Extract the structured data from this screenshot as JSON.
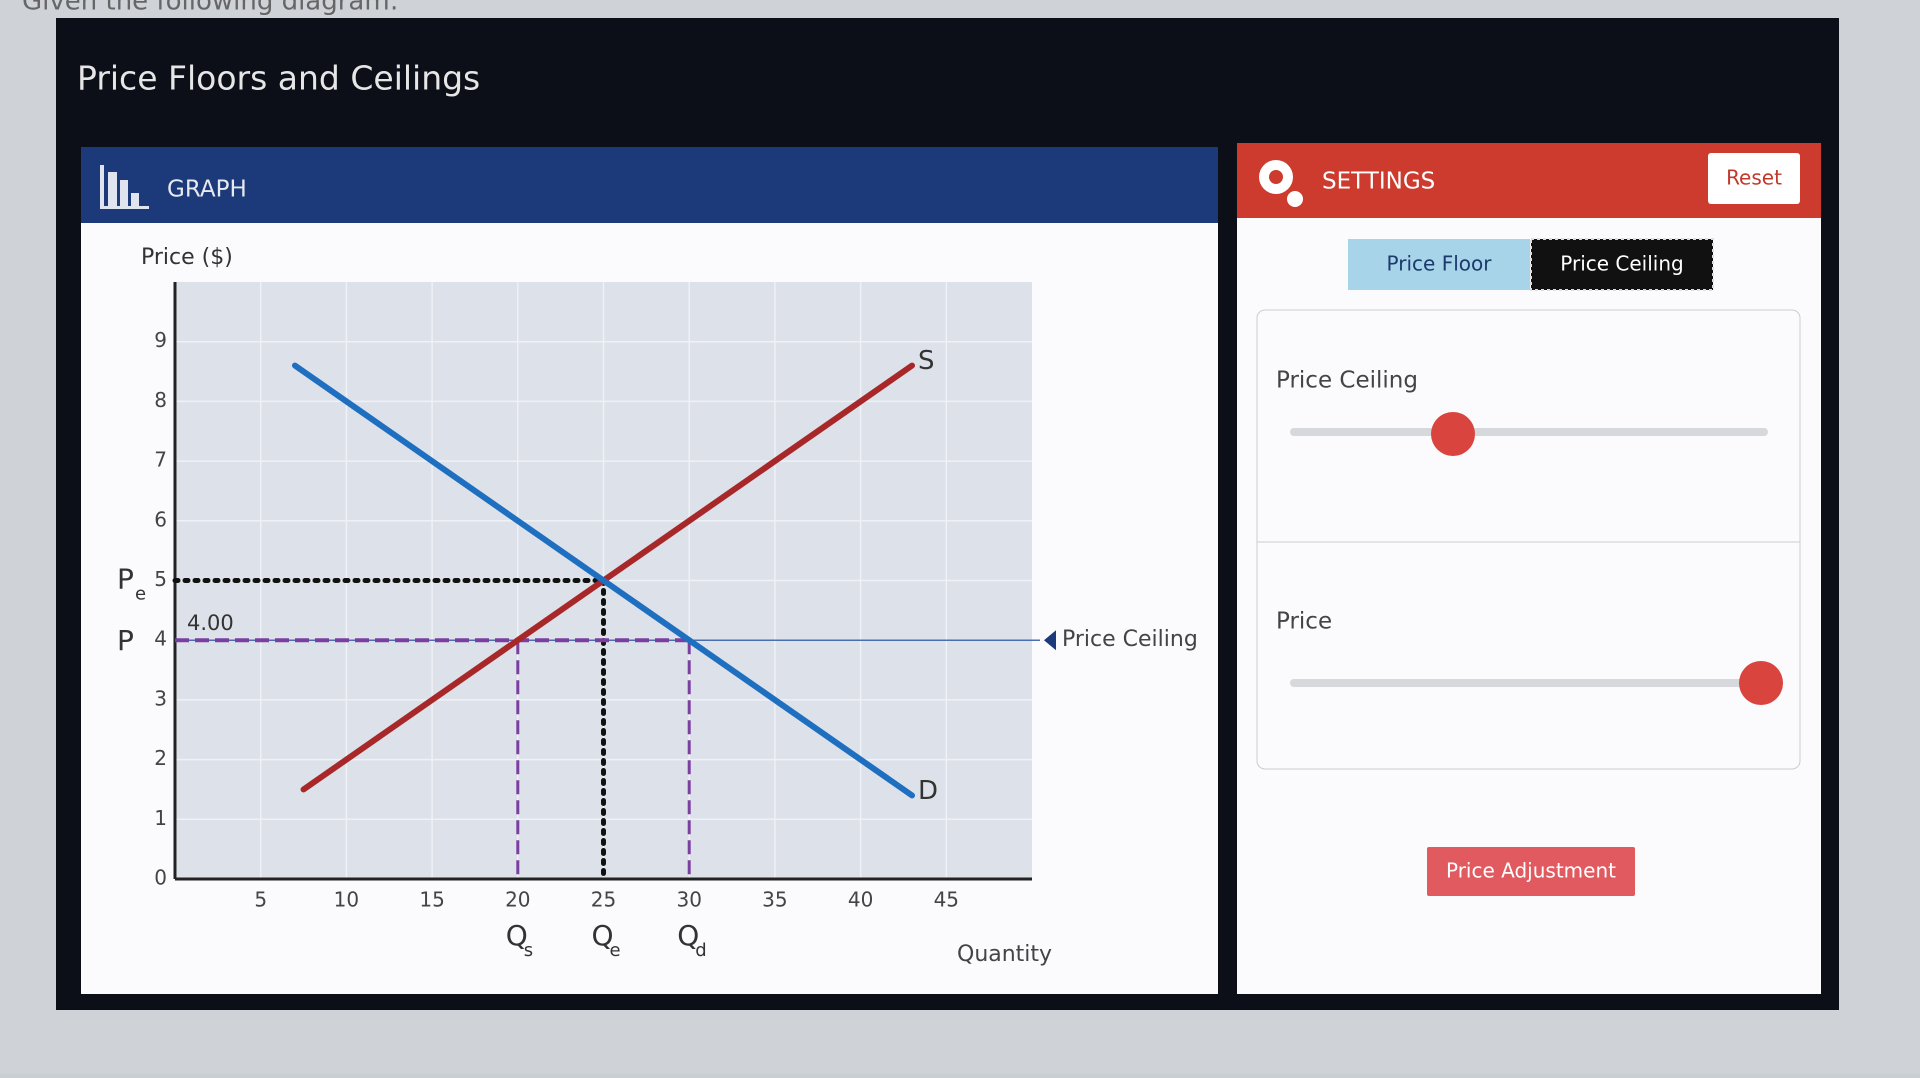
{
  "prompt": "Given the following diagram:",
  "app_title": "Price Floors and Ceilings",
  "graph_panel": {
    "title": "GRAPH"
  },
  "chart_data": {
    "type": "line",
    "y_label": "Price ($)",
    "x_label": "Quantity",
    "xlim": [
      0,
      50
    ],
    "ylim": [
      0,
      10
    ],
    "xticks": [
      5,
      10,
      15,
      20,
      25,
      30,
      35,
      40,
      45
    ],
    "yticks": [
      0,
      1,
      2,
      3,
      4,
      5,
      6,
      7,
      8,
      9
    ],
    "series": [
      {
        "name": "S",
        "color": "#a8282a",
        "x": [
          7.5,
          43
        ],
        "values": [
          1.5,
          8.6
        ]
      },
      {
        "name": "D",
        "color": "#1f6fc0",
        "x": [
          7,
          43
        ],
        "values": [
          8.6,
          1.4
        ]
      }
    ],
    "price_ceiling": {
      "value": 4,
      "label": "4.00",
      "text": "Price Ceiling",
      "color": "#7b3fa0"
    },
    "equilibrium": {
      "price": 5,
      "quantity": 25
    },
    "quantity_supplied": 20,
    "quantity_demanded": 30,
    "annotations": {
      "pe": {
        "text": "P",
        "sub": "e"
      },
      "p": "P",
      "qs": {
        "text": "Q",
        "sub": "s"
      },
      "qe": {
        "text": "Q",
        "sub": "e"
      },
      "qd": {
        "text": "Q",
        "sub": "d"
      }
    }
  },
  "settings_panel": {
    "title": "SETTINGS",
    "reset": "Reset",
    "tabs": [
      "Price Floor",
      "Price Ceiling"
    ],
    "sliders": [
      "Price Ceiling",
      "Price"
    ],
    "button": "Price Adjustment"
  }
}
